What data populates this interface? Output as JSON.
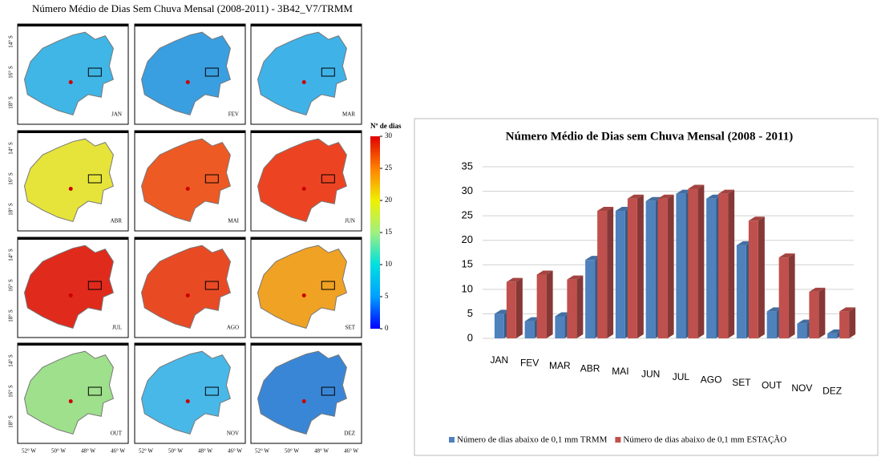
{
  "maps": {
    "title": "Número Médio de Dias Sem Chuva Mensal (2008-2011) - 3B42_V7/TRMM",
    "lat_labels": [
      "14° S",
      "16° S",
      "18° S"
    ],
    "lon_labels": [
      "52° W",
      "50° W",
      "48° W",
      "46° W"
    ],
    "panels": [
      {
        "label": "JAN",
        "color": "#3fb6e6"
      },
      {
        "label": "FEV",
        "color": "#3a9fe0"
      },
      {
        "label": "MAR",
        "color": "#3fb2e8"
      },
      {
        "label": "ABR",
        "color": "#e6e43a"
      },
      {
        "label": "MAI",
        "color": "#ee5a24"
      },
      {
        "label": "JUN",
        "color": "#ec4422"
      },
      {
        "label": "JUL",
        "color": "#e02a1c"
      },
      {
        "label": "AGO",
        "color": "#e84a24"
      },
      {
        "label": "SET",
        "color": "#f0a224"
      },
      {
        "label": "OUT",
        "color": "#9ee08c"
      },
      {
        "label": "NOV",
        "color": "#48b8e8"
      },
      {
        "label": "DEZ",
        "color": "#3a86d6"
      }
    ],
    "colorbar": {
      "label": "Nº de dias",
      "lim": [
        0,
        30
      ],
      "ticks": [
        0,
        5,
        10,
        15,
        20,
        25,
        30
      ]
    }
  },
  "chart_data": {
    "type": "bar",
    "title": "Número Médio de Dias sem Chuva  Mensal (2008 - 2011)",
    "categories": [
      "JAN",
      "FEV",
      "MAR",
      "ABR",
      "MAI",
      "JUN",
      "JUL",
      "AGO",
      "SET",
      "OUT",
      "NOV",
      "DEZ"
    ],
    "series": [
      {
        "name": "Número de dias abaixo de 0,1 mm TRMM",
        "color": "#4f81bd",
        "values": [
          5,
          3.5,
          4.5,
          16,
          26,
          28,
          29.5,
          28.5,
          19,
          5.5,
          3,
          1
        ]
      },
      {
        "name": "Número de dias abaixo de 0,1 mm ESTAÇÃO",
        "color": "#c0504d",
        "values": [
          11.5,
          13,
          12,
          26,
          28.5,
          28.5,
          30.5,
          29.5,
          24,
          16.5,
          9.5,
          5.5
        ]
      }
    ],
    "ylim": [
      0,
      35
    ],
    "yticks": [
      0,
      5,
      10,
      15,
      20,
      25,
      30,
      35
    ],
    "grid": true
  }
}
